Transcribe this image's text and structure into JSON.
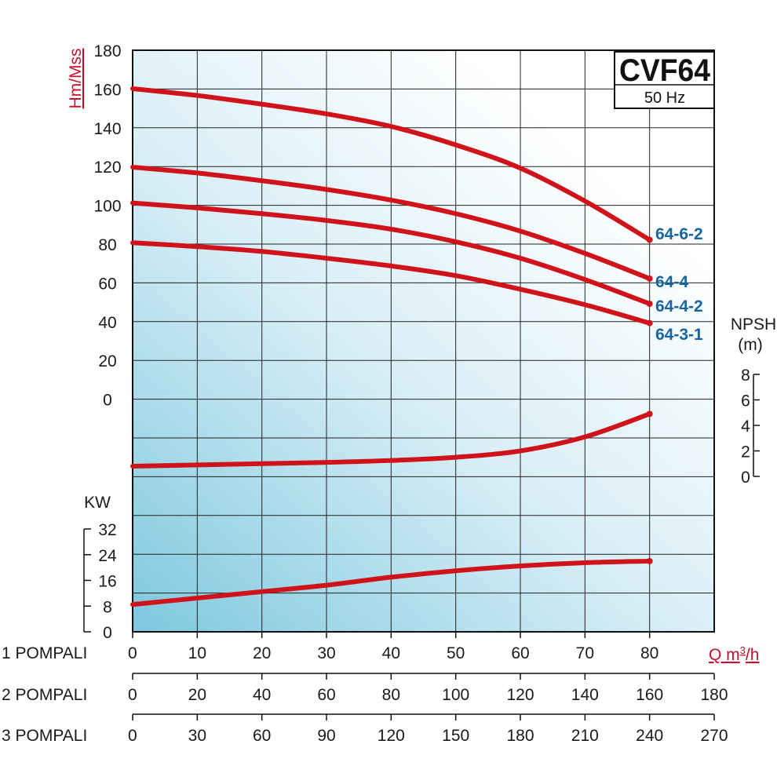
{
  "title": {
    "model": "CVF64",
    "frequency": "50 Hz"
  },
  "colors": {
    "curve": "#d0121b",
    "axis_red": "#c8102e",
    "label_blue": "#1565a0",
    "bg_blue": "#7ec8de"
  },
  "axes": {
    "head_label": "Hm/Mss",
    "head_ticks": [
      "180",
      "160",
      "140",
      "120",
      "100",
      "80",
      "60",
      "40",
      "20",
      "0"
    ],
    "npsh_label_1": "NPSH",
    "npsh_label_2": "(m)",
    "npsh_ticks": [
      "8",
      "6",
      "4",
      "2",
      "0"
    ],
    "kw_label": "KW",
    "kw_ticks": [
      "32",
      "24",
      "16",
      "8",
      "0"
    ],
    "flow_label": "Q m",
    "flow_label_sup": "3",
    "flow_label_suffix": "/h"
  },
  "flow_rows": [
    {
      "label": "1 POMPALI",
      "ticks": [
        "0",
        "10",
        "20",
        "30",
        "40",
        "50",
        "60",
        "70",
        "80"
      ]
    },
    {
      "label": "2 POMPALI",
      "ticks": [
        "0",
        "20",
        "40",
        "60",
        "80",
        "100",
        "120",
        "140",
        "160",
        "180"
      ]
    },
    {
      "label": "3 POMPALI",
      "ticks": [
        "0",
        "30",
        "60",
        "90",
        "120",
        "150",
        "180",
        "210",
        "240",
        "270"
      ]
    }
  ],
  "chart_data": {
    "type": "line",
    "title": "CVF64",
    "subtitle": "50 Hz",
    "xlabel": "Q m3/h",
    "ylabel": "Hm/Mss",
    "xlim": [
      0,
      90
    ],
    "ylim": [
      0,
      180
    ],
    "grid": true,
    "x": [
      0,
      10,
      20,
      30,
      40,
      50,
      60,
      70,
      80
    ],
    "head_series": [
      {
        "name": "64-6-2",
        "values": [
          160,
          156.5,
          152,
          147,
          140.5,
          131,
          119,
          102,
          82
        ]
      },
      {
        "name": "64-4",
        "values": [
          119.5,
          116.5,
          112.5,
          108,
          102.5,
          95.5,
          86.5,
          75,
          62
        ]
      },
      {
        "name": "64-4-2",
        "values": [
          101,
          98.5,
          95.5,
          92,
          87.5,
          81,
          72.5,
          61.5,
          49
        ]
      },
      {
        "name": "64-3-1",
        "values": [
          80.5,
          78.5,
          76,
          72.5,
          68.5,
          63.5,
          56.5,
          48.5,
          39
        ]
      },
      {
        "values": []
      }
    ],
    "npsh_series": {
      "ylabel": "NPSH (m)",
      "ylim": [
        0,
        8
      ],
      "values": [
        0.8,
        0.9,
        1.0,
        1.1,
        1.25,
        1.5,
        2.0,
        3.1,
        4.9
      ]
    },
    "power_series": {
      "ylabel": "KW",
      "ylim": [
        0,
        32
      ],
      "values": [
        8.5,
        10.5,
        12.5,
        14.5,
        17.0,
        19.0,
        20.5,
        21.5,
        22.0
      ]
    }
  }
}
